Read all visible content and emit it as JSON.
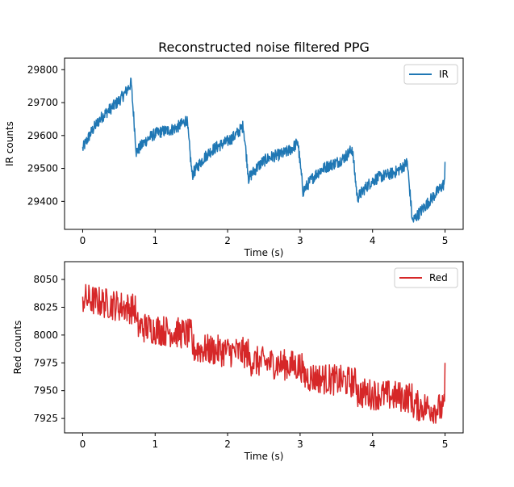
{
  "title": "Reconstructed noise filtered PPG",
  "chart_data": [
    {
      "type": "line",
      "xlabel": "Time (s)",
      "ylabel": "IR counts",
      "xlim": [
        -0.25,
        5.25
      ],
      "ylim": [
        29315,
        29835
      ],
      "xticks": [
        0,
        1,
        2,
        3,
        4,
        5
      ],
      "yticks": [
        29400,
        29500,
        29600,
        29700,
        29800
      ],
      "legend": "top-right",
      "grid": false,
      "series": [
        {
          "name": "IR",
          "color": "#1f77b4",
          "beat_onsets": [
            0.0,
            0.74,
            1.51,
            2.29,
            3.04,
            3.79,
            4.55,
            5.0
          ],
          "trough_values": [
            29560,
            29550,
            29480,
            29470,
            29430,
            29410,
            29340
          ],
          "peak_values": [
            29770,
            29660,
            29640,
            29590,
            29570,
            29530,
            29470
          ],
          "noise_amplitude": 18
        }
      ]
    },
    {
      "type": "line",
      "xlabel": "Time (s)",
      "ylabel": "Red counts",
      "xlim": [
        -0.25,
        5.25
      ],
      "ylim": [
        7912,
        8066
      ],
      "xticks": [
        0,
        1,
        2,
        3,
        4,
        5
      ],
      "yticks": [
        7925,
        7950,
        7975,
        8000,
        8025,
        8050
      ],
      "legend": "top-right",
      "grid": false,
      "series": [
        {
          "name": "Red",
          "color": "#d62728",
          "beat_onsets": [
            0.0,
            0.74,
            1.51,
            2.29,
            3.04,
            3.79,
            4.55,
            5.0
          ],
          "level_values": [
            8033,
            8008,
            7988,
            7977,
            7963,
            7948,
            7937
          ],
          "noise_amplitude": 14
        }
      ]
    }
  ]
}
